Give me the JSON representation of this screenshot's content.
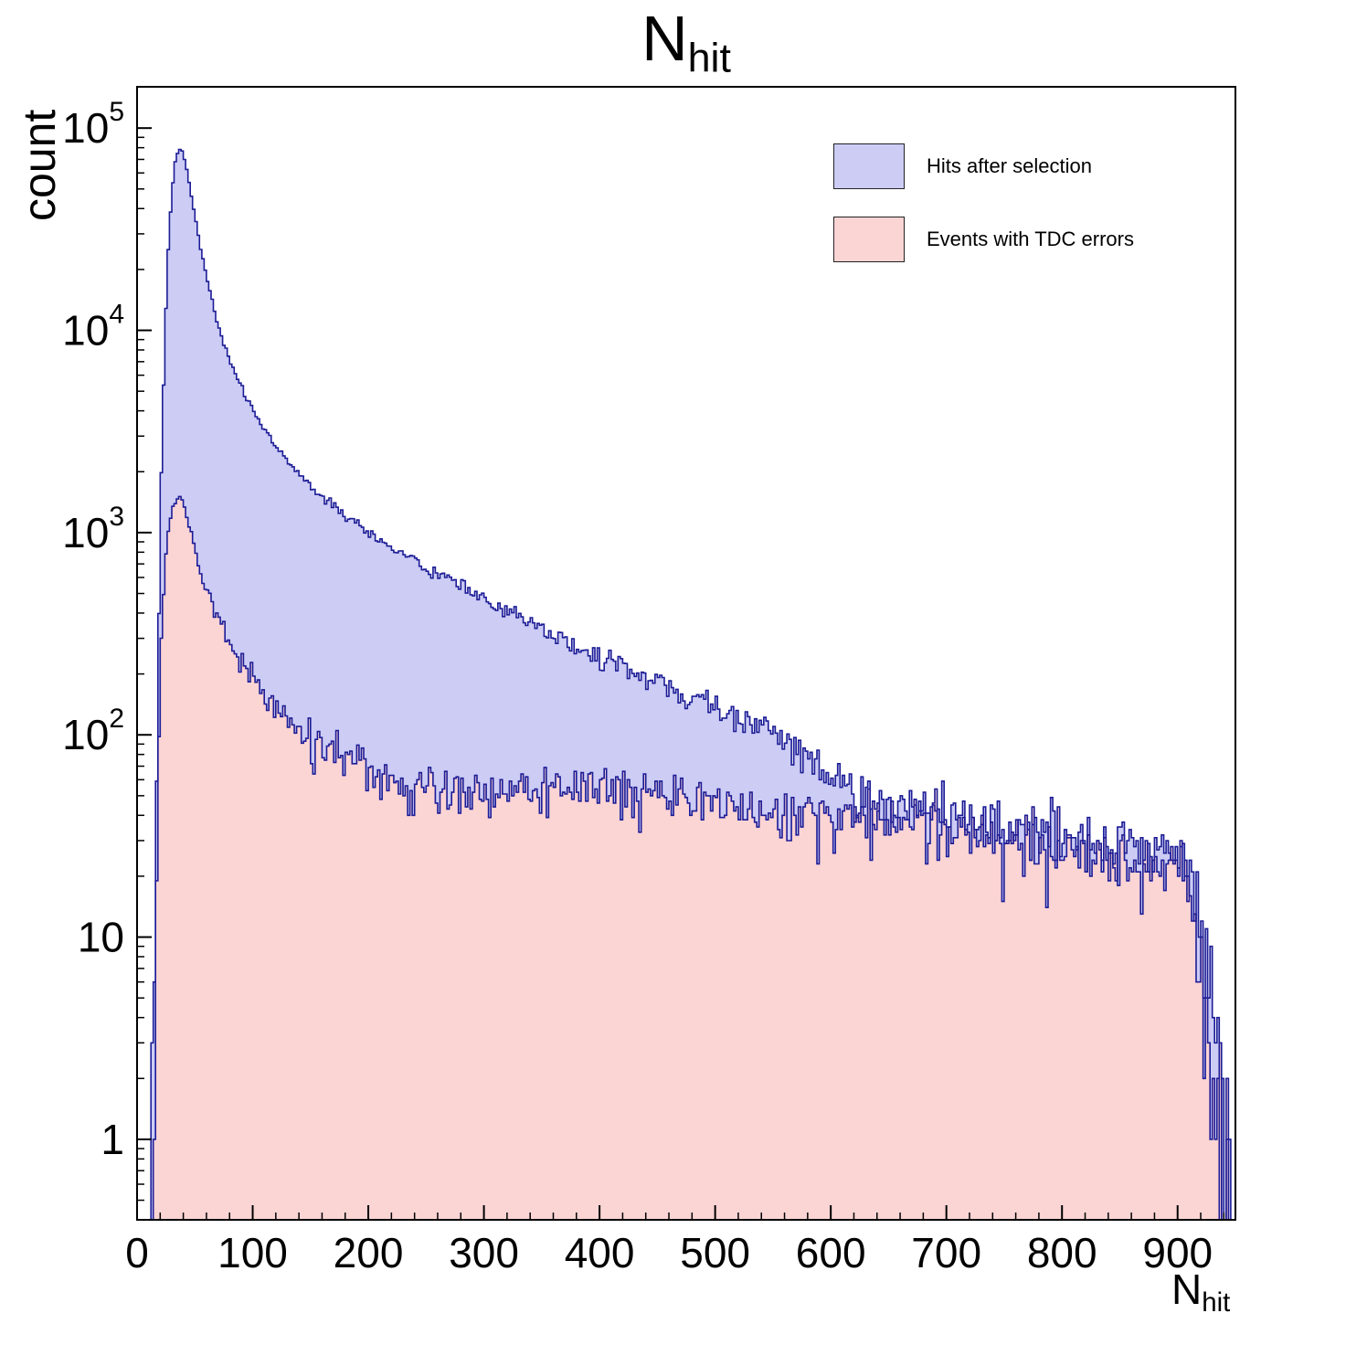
{
  "title": {
    "main": "N",
    "sub": "hit"
  },
  "axes": {
    "y_label": "count",
    "x_label_main": "N",
    "x_label_sub": "hit",
    "x_ticks": [
      0,
      100,
      200,
      300,
      400,
      500,
      600,
      700,
      800,
      900
    ],
    "x_minor_step": 20,
    "y_tick_exponents": [
      0,
      1,
      2,
      3,
      4,
      5
    ]
  },
  "chart_data": {
    "type": "histogram-step",
    "title": "N_hit",
    "xlabel": "N_hit",
    "ylabel": "count",
    "y_scale": "log",
    "x_range": [
      0,
      950
    ],
    "y_range": [
      0.4,
      160000
    ],
    "x_bin_width": 2,
    "grid": false,
    "legend_position": "top-right",
    "frame_color": "#000000",
    "series": [
      {
        "name": "Hits after selection",
        "fill": "#ccccf5",
        "line": "#1c1c96",
        "peak": {
          "x": 37,
          "y": 79000
        },
        "anchors": [
          [
            11,
            0.05
          ],
          [
            13,
            0.8
          ],
          [
            15,
            6
          ],
          [
            17,
            60
          ],
          [
            19,
            400
          ],
          [
            21,
            2000
          ],
          [
            24,
            9000
          ],
          [
            27,
            25000
          ],
          [
            30,
            48000
          ],
          [
            33,
            68000
          ],
          [
            36,
            79000
          ],
          [
            39,
            77000
          ],
          [
            42,
            67000
          ],
          [
            46,
            50000
          ],
          [
            50,
            37000
          ],
          [
            55,
            25500
          ],
          [
            60,
            18500
          ],
          [
            65,
            14000
          ],
          [
            70,
            10500
          ],
          [
            75,
            8600
          ],
          [
            80,
            7200
          ],
          [
            85,
            6100
          ],
          [
            90,
            5300
          ],
          [
            95,
            4600
          ],
          [
            100,
            4100
          ],
          [
            110,
            3260
          ],
          [
            120,
            2700
          ],
          [
            130,
            2270
          ],
          [
            140,
            1960
          ],
          [
            150,
            1700
          ],
          [
            160,
            1510
          ],
          [
            170,
            1350
          ],
          [
            180,
            1220
          ],
          [
            190,
            1100
          ],
          [
            200,
            1000
          ],
          [
            215,
            880
          ],
          [
            230,
            780
          ],
          [
            245,
            690
          ],
          [
            260,
            620
          ],
          [
            275,
            555
          ],
          [
            290,
            500
          ],
          [
            305,
            450
          ],
          [
            320,
            405
          ],
          [
            335,
            365
          ],
          [
            350,
            330
          ],
          [
            365,
            300
          ],
          [
            380,
            272
          ],
          [
            395,
            248
          ],
          [
            410,
            226
          ],
          [
            425,
            207
          ],
          [
            440,
            190
          ],
          [
            455,
            174
          ],
          [
            470,
            160
          ],
          [
            485,
            148
          ],
          [
            500,
            136
          ],
          [
            515,
            125
          ],
          [
            530,
            115
          ],
          [
            545,
            106
          ],
          [
            560,
            96
          ],
          [
            575,
            81
          ],
          [
            590,
            68
          ],
          [
            605,
            58
          ],
          [
            620,
            52
          ],
          [
            640,
            48
          ],
          [
            660,
            45
          ],
          [
            680,
            43
          ],
          [
            700,
            41
          ],
          [
            720,
            39
          ],
          [
            740,
            37
          ],
          [
            760,
            35
          ],
          [
            780,
            34
          ],
          [
            800,
            32
          ],
          [
            820,
            31
          ],
          [
            840,
            29
          ],
          [
            860,
            28
          ],
          [
            880,
            27
          ],
          [
            900,
            25
          ],
          [
            910,
            23
          ],
          [
            918,
            17
          ],
          [
            924,
            9
          ],
          [
            930,
            4
          ],
          [
            936,
            1.8
          ],
          [
            942,
            0.9
          ],
          [
            948,
            0.4
          ]
        ]
      },
      {
        "name": "Events with TDC errors",
        "fill": "#fbd4d4",
        "line": "#1c1c96",
        "peak": {
          "x": 36,
          "y": 1500
        },
        "anchors": [
          [
            13,
            0.05
          ],
          [
            15,
            1
          ],
          [
            17,
            15
          ],
          [
            19,
            90
          ],
          [
            21,
            300
          ],
          [
            24,
            700
          ],
          [
            27,
            1050
          ],
          [
            30,
            1300
          ],
          [
            33,
            1430
          ],
          [
            36,
            1500
          ],
          [
            39,
            1430
          ],
          [
            42,
            1280
          ],
          [
            46,
            1050
          ],
          [
            50,
            850
          ],
          [
            55,
            660
          ],
          [
            60,
            530
          ],
          [
            65,
            440
          ],
          [
            70,
            375
          ],
          [
            75,
            325
          ],
          [
            80,
            285
          ],
          [
            85,
            255
          ],
          [
            90,
            230
          ],
          [
            95,
            208
          ],
          [
            100,
            190
          ],
          [
            110,
            160
          ],
          [
            120,
            138
          ],
          [
            130,
            121
          ],
          [
            140,
            107
          ],
          [
            150,
            96
          ],
          [
            160,
            88
          ],
          [
            170,
            81
          ],
          [
            180,
            75
          ],
          [
            190,
            70
          ],
          [
            200,
            66
          ],
          [
            215,
            62
          ],
          [
            230,
            59
          ],
          [
            245,
            57
          ],
          [
            260,
            55
          ],
          [
            275,
            54
          ],
          [
            290,
            53
          ],
          [
            305,
            53
          ],
          [
            320,
            54
          ],
          [
            335,
            55
          ],
          [
            350,
            56
          ],
          [
            365,
            57
          ],
          [
            380,
            57
          ],
          [
            395,
            56
          ],
          [
            410,
            55
          ],
          [
            425,
            54
          ],
          [
            440,
            52
          ],
          [
            455,
            50
          ],
          [
            470,
            48
          ],
          [
            485,
            47
          ],
          [
            500,
            45
          ],
          [
            515,
            44
          ],
          [
            530,
            43
          ],
          [
            545,
            42
          ],
          [
            560,
            41
          ],
          [
            575,
            41
          ],
          [
            590,
            42
          ],
          [
            605,
            42
          ],
          [
            625,
            40
          ],
          [
            645,
            38
          ],
          [
            665,
            36
          ],
          [
            685,
            35
          ],
          [
            705,
            33
          ],
          [
            725,
            32
          ],
          [
            745,
            30
          ],
          [
            765,
            29
          ],
          [
            785,
            28
          ],
          [
            805,
            27
          ],
          [
            825,
            26
          ],
          [
            845,
            25
          ],
          [
            865,
            24
          ],
          [
            885,
            23
          ],
          [
            900,
            22
          ],
          [
            908,
            19
          ],
          [
            914,
            12
          ],
          [
            920,
            6
          ],
          [
            926,
            3
          ],
          [
            932,
            1.4
          ],
          [
            938,
            0.8
          ],
          [
            944,
            0.4
          ]
        ]
      }
    ]
  }
}
